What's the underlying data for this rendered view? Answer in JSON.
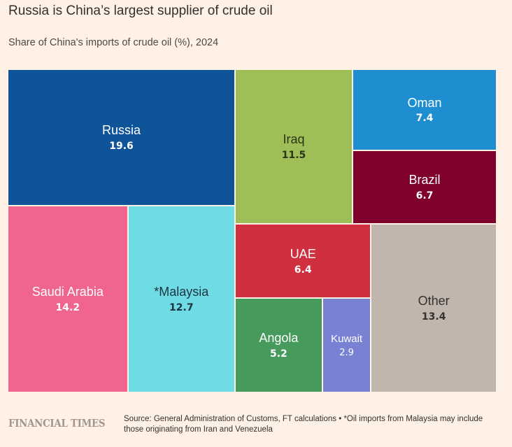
{
  "chart_data": {
    "type": "treemap",
    "title": "Russia is China’s largest supplier of crude oil",
    "subtitle": "Share of China's imports of crude oil (%), 2024",
    "unit": "%",
    "items": [
      {
        "label": "Russia",
        "value": 19.6,
        "color": "#0f5499",
        "text_color": "#ffffff"
      },
      {
        "label": "Saudi Arabia",
        "value": 14.2,
        "color": "#f0658e",
        "text_color": "#ffffff"
      },
      {
        "label": "*Malaysia",
        "value": 12.7,
        "color": "#6fdbe5",
        "text_color": "#1d3440"
      },
      {
        "label": "Iraq",
        "value": 11.5,
        "color": "#9ebf57",
        "text_color": "#2a3518"
      },
      {
        "label": "Oman",
        "value": 7.4,
        "color": "#1f8ed0",
        "text_color": "#ffffff"
      },
      {
        "label": "Brazil",
        "value": 6.7,
        "color": "#80002e",
        "text_color": "#ffffff"
      },
      {
        "label": "UAE",
        "value": 6.4,
        "color": "#d02f40",
        "text_color": "#ffffff"
      },
      {
        "label": "Angola",
        "value": 5.2,
        "color": "#469a5c",
        "text_color": "#ffffff"
      },
      {
        "label": "Kuwait",
        "value": 2.9,
        "color": "#7981d3",
        "text_color": "#ffffff"
      },
      {
        "label": "Other",
        "value": 13.4,
        "color": "#c1b6ae",
        "text_color": "#33302e"
      }
    ]
  },
  "footer": {
    "brand": "FINANCIAL TIMES",
    "source": "Source: General Administration of Customs, FT calculations • *Oil imports from Malaysia may include those originating from Iran and Venezuela"
  }
}
